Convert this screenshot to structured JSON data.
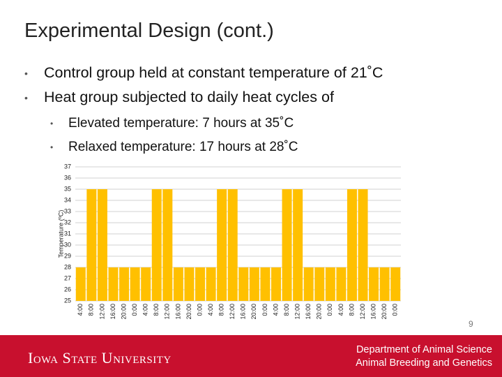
{
  "title": "Experimental Design (cont.)",
  "bullets": [
    "Control group held at constant temperature of 21˚C",
    "Heat group subjected to daily heat cycles of"
  ],
  "sub_bullets": [
    "Elevated temperature: 7 hours at 35˚C",
    "Relaxed temperature: 17 hours at 28˚C"
  ],
  "page_number": "9",
  "footer": {
    "logo": "Iowa State University",
    "department": "Department of Animal Science",
    "group": "Animal Breeding and Genetics"
  },
  "chart_data": {
    "type": "bar",
    "y_label": "Temperature (ºC)",
    "color": "#ffc000",
    "categories": [
      "4:00",
      "8:00",
      "12:00",
      "16:00",
      "20:00",
      "0:00",
      "4:00",
      "8:00",
      "12:00",
      "16:00",
      "20:00",
      "0:00",
      "4:00",
      "8:00",
      "12:00",
      "16:00",
      "20:00",
      "0:00",
      "4:00",
      "8:00",
      "12:00",
      "16:00",
      "20:00",
      "0:00",
      "4:00",
      "8:00",
      "12:00",
      "16:00",
      "20:00",
      "0:00"
    ],
    "values": [
      28,
      35,
      35,
      28,
      28,
      28,
      28,
      35,
      35,
      28,
      28,
      28,
      28,
      35,
      35,
      28,
      28,
      28,
      28,
      35,
      35,
      28,
      28,
      28,
      28,
      35,
      35,
      28,
      28,
      28
    ],
    "ylim": [
      25,
      37
    ],
    "yticks": [
      25,
      26,
      27,
      28,
      29,
      30,
      31,
      32,
      33,
      34,
      35,
      36,
      37
    ],
    "grid": true
  }
}
